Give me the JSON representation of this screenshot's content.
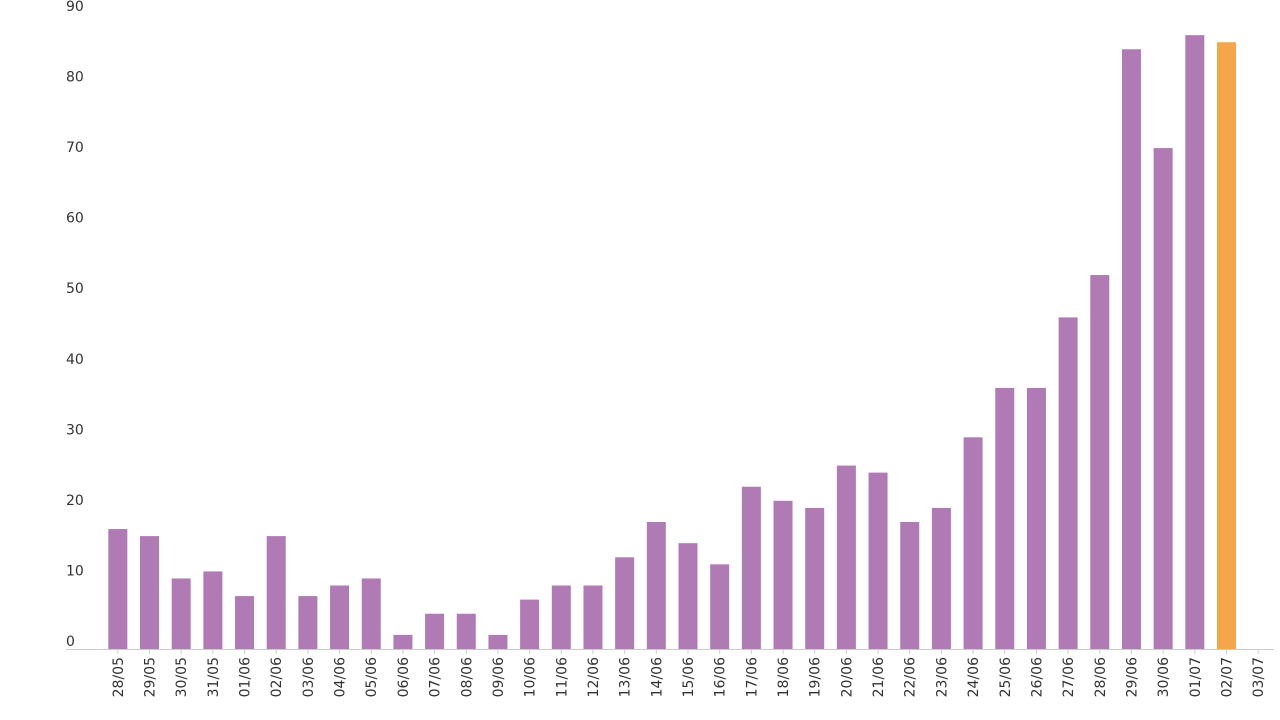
{
  "chart_data": {
    "type": "bar",
    "title": "",
    "xlabel": "",
    "ylabel": "",
    "ylim": [
      0,
      90
    ],
    "yticks": [
      0,
      10,
      20,
      30,
      40,
      50,
      60,
      70,
      80,
      90
    ],
    "grid": false,
    "categories": [
      "28/05",
      "29/05",
      "30/05",
      "31/05",
      "01/06",
      "02/06",
      "03/06",
      "04/06",
      "05/06",
      "06/06",
      "07/06",
      "08/06",
      "09/06",
      "10/06",
      "11/06",
      "12/06",
      "13/06",
      "14/06",
      "15/06",
      "16/06",
      "17/06",
      "18/06",
      "19/06",
      "20/06",
      "21/06",
      "22/06",
      "23/06",
      "24/06",
      "25/06",
      "26/06",
      "27/06",
      "28/06",
      "29/06",
      "30/06",
      "01/07",
      "02/07",
      "03/07"
    ],
    "values": [
      17,
      16,
      10,
      11,
      7.5,
      16,
      7.5,
      9,
      10,
      2,
      5,
      5,
      2,
      7,
      9,
      9,
      13,
      18,
      15,
      12,
      23,
      21,
      20,
      26,
      25,
      18,
      20,
      30,
      37,
      37,
      47,
      53,
      85,
      71,
      87,
      86,
      null
    ],
    "colors": {
      "default": "#b07ab5",
      "highlight": "#f5a54a",
      "axis": "#cccccc",
      "text": "#333333"
    },
    "highlight_categories": [
      "02/07"
    ]
  }
}
